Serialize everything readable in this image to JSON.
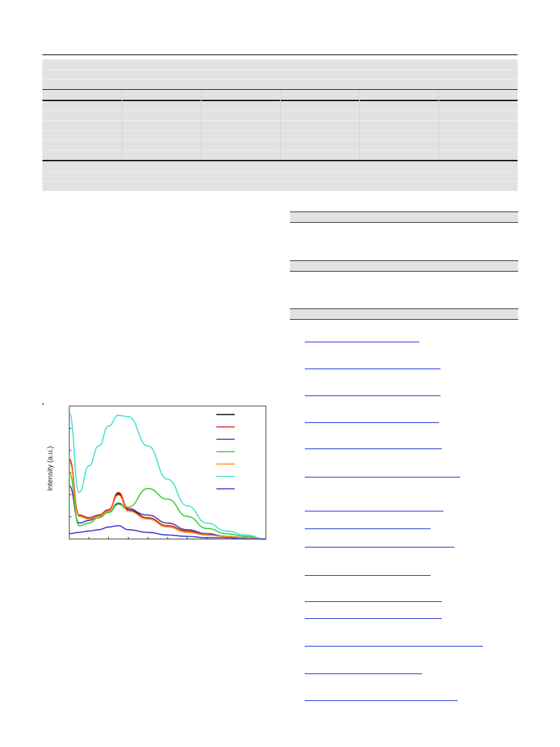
{
  "figure": {
    "ylabel": "Intensity (a.u.)",
    "legend_colors": [
      "#000000",
      "#e02020",
      "#3a3aa8",
      "#33cc33",
      "#ff8c1a",
      "#40e0d0",
      "#3a3ad0"
    ]
  },
  "chart_data": {
    "type": "line",
    "title": "",
    "xlabel": "",
    "ylabel": "Intensity (a.u.)",
    "series": [
      {
        "color": "#000000",
        "x": [
          0,
          5,
          10,
          15,
          20,
          25,
          30,
          40,
          50,
          60,
          70,
          80,
          90,
          100
        ],
        "values": [
          60,
          18,
          16,
          18,
          22,
          34,
          22,
          16,
          10,
          6,
          3,
          2,
          1,
          0
        ]
      },
      {
        "color": "#e02020",
        "x": [
          0,
          5,
          10,
          15,
          20,
          25,
          30,
          40,
          50,
          60,
          70,
          80,
          90,
          100
        ],
        "values": [
          60,
          18,
          16,
          18,
          22,
          35,
          23,
          16,
          10,
          6,
          3,
          2,
          1,
          0
        ]
      },
      {
        "color": "#3a3aa8",
        "x": [
          0,
          5,
          10,
          15,
          20,
          25,
          30,
          40,
          50,
          60,
          70,
          80,
          90,
          100
        ],
        "values": [
          40,
          12,
          14,
          17,
          20,
          27,
          22,
          18,
          12,
          7,
          4,
          2,
          1,
          0
        ]
      },
      {
        "color": "#33cc33",
        "x": [
          0,
          5,
          10,
          15,
          20,
          25,
          30,
          40,
          50,
          60,
          70,
          80,
          90,
          100
        ],
        "values": [
          50,
          10,
          12,
          16,
          20,
          26,
          24,
          38,
          30,
          17,
          8,
          4,
          2,
          0
        ]
      },
      {
        "color": "#ff8c1a",
        "x": [
          0,
          5,
          10,
          15,
          20,
          25,
          30,
          40,
          50,
          60,
          70,
          80,
          90,
          100
        ],
        "values": [
          58,
          17,
          15,
          17,
          21,
          33,
          21,
          15,
          9,
          5,
          3,
          2,
          1,
          0
        ]
      },
      {
        "color": "#40e0d0",
        "x": [
          0,
          5,
          10,
          15,
          20,
          25,
          30,
          40,
          50,
          60,
          70,
          80,
          90,
          100
        ],
        "values": [
          95,
          35,
          55,
          70,
          85,
          93,
          92,
          70,
          45,
          25,
          12,
          6,
          3,
          0
        ]
      },
      {
        "color": "#3a3ad0",
        "x": [
          0,
          5,
          10,
          15,
          20,
          25,
          30,
          40,
          50,
          60,
          70,
          80,
          90,
          100
        ],
        "values": [
          4,
          5,
          6,
          7,
          9,
          10,
          7,
          5,
          3,
          2,
          1,
          1,
          0,
          0
        ]
      }
    ],
    "ylim": [
      0,
      100
    ],
    "xlim": [
      0,
      100
    ],
    "legend": "top-right"
  }
}
